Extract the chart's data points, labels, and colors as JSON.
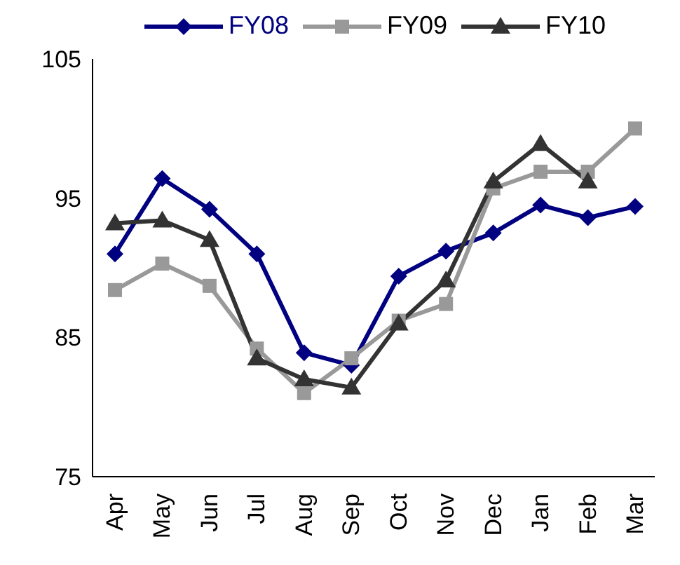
{
  "chart_data": {
    "type": "line",
    "categories": [
      "Apr",
      "May",
      "Jun",
      "Jul",
      "Aug",
      "Sep",
      "Oct",
      "Nov",
      "Dec",
      "Jan",
      "Feb",
      "Mar"
    ],
    "series": [
      {
        "name": "FY08",
        "color": "#000080",
        "marker": "diamond",
        "values": [
          91.0,
          96.4,
          94.2,
          91.0,
          83.9,
          83.0,
          89.4,
          91.2,
          92.5,
          94.5,
          93.6,
          94.4
        ]
      },
      {
        "name": "FY09",
        "color": "#999999",
        "marker": "square",
        "values": [
          88.4,
          90.3,
          88.7,
          84.2,
          81.0,
          83.5,
          86.2,
          87.4,
          95.7,
          96.9,
          96.9,
          100.0
        ]
      },
      {
        "name": "FY10",
        "color": "#333333",
        "marker": "triangle",
        "values": [
          93.2,
          93.4,
          92.0,
          83.5,
          82.0,
          81.4,
          86.0,
          89.1,
          96.2,
          98.9,
          96.2,
          null
        ]
      }
    ],
    "ylim": [
      75,
      105
    ],
    "yticks": [
      75,
      85,
      95,
      105
    ],
    "grid": false,
    "legend": "top"
  }
}
